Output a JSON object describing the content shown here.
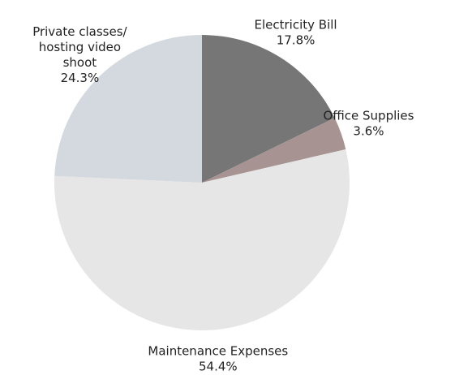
{
  "chart_data": {
    "type": "pie",
    "categories": [
      "Electricity Bill",
      "Office Supplies",
      "Maintenance Expenses",
      "Private classes/ hosting video shoot"
    ],
    "values": [
      17.8,
      3.6,
      54.4,
      24.3
    ],
    "value_labels": [
      "17.8%",
      "3.6%",
      "54.4%",
      "24.3%"
    ],
    "colors": [
      "#767676",
      "#a89393",
      "#e6e6e6",
      "#d3d9df"
    ]
  }
}
